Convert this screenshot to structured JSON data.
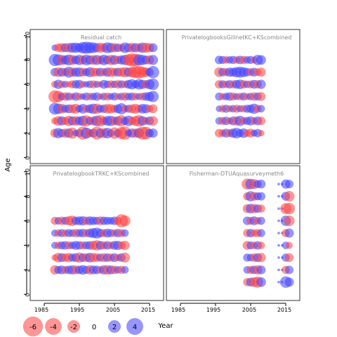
{
  "axes": {
    "ylabel": "Age",
    "xlabel": "Year",
    "y_ticks": [
      "0",
      "2",
      "4",
      "6",
      "8",
      "10"
    ],
    "x_ticks": [
      "1985",
      "1995",
      "2005",
      "2015"
    ]
  },
  "legend": {
    "labels": [
      "-6",
      "-4",
      "-2",
      "0",
      "2",
      "4"
    ]
  },
  "colors": {
    "positive": "#4040ff",
    "negative": "#ff4040",
    "frame": "#333333"
  },
  "chart_data": [
    {
      "type": "scatter",
      "title": "Residual catch",
      "xlim": [
        1981,
        2019
      ],
      "ylim": [
        -0.5,
        10.5
      ],
      "years": [
        1988,
        2016
      ],
      "ages": [
        2,
        3,
        4,
        5,
        6,
        7,
        8,
        9
      ],
      "residuals_by_age": {
        "2": [
          -0.8,
          1.2,
          0.7,
          -0.9,
          0.9,
          -1.5,
          0.3,
          0.6,
          -2.2,
          1.5,
          -0.7,
          0.8,
          -2.1,
          0.9,
          -1.1,
          1.3,
          0.5,
          -1.6,
          0.6,
          -1.8,
          -2.3,
          0.4,
          0.9,
          -0.9,
          1.1,
          -2.2,
          -2.0,
          0.7,
          0.9
        ],
        "3": [
          -0.4,
          -1.0,
          0.9,
          -0.6,
          -1.2,
          0.9,
          -1.0,
          0.8,
          1.2,
          -1.5,
          0.6,
          -0.9,
          1.3,
          -1.6,
          -0.7,
          1.1,
          1.2,
          -0.8,
          0.9,
          -1.6,
          0.6,
          1.3,
          -0.7,
          -1.1,
          -1.6,
          1.0,
          -0.5,
          0.8,
          -1.0
        ],
        "4": [
          1.7,
          1.3,
          -1.0,
          0.6,
          0.8,
          -0.8,
          -1.1,
          0.5,
          1.0,
          -0.6,
          0.8,
          1.2,
          -1.2,
          0.6,
          0.7,
          -1.0,
          -0.9,
          -0.6,
          0.8,
          1.5,
          -0.5,
          0.6,
          -0.8,
          -1.1,
          -0.6,
          1.0,
          0.9,
          -0.5,
          -0.8
        ],
        "5": [
          -2.0,
          -1.6,
          0.5,
          -0.7,
          0.6,
          -0.4,
          0.7,
          -0.5,
          0.3,
          0.6,
          -0.5,
          0.5,
          0.7,
          -0.3,
          0.5,
          -0.6,
          0.4,
          0.6,
          -0.4,
          0.5,
          -0.7,
          0.5,
          0.6,
          -0.5,
          0.4,
          -0.6,
          0.7,
          0.9,
          1.5
        ],
        "6": [
          -0.4,
          0.9,
          -0.5,
          0.4,
          -0.3,
          -0.6,
          0.7,
          0.8,
          -0.4,
          0.3,
          0.5,
          -0.6,
          0.4,
          -0.3,
          0.8,
          0.5,
          -0.6,
          0.5,
          -0.7,
          0.6,
          -0.5,
          0.8,
          1.2,
          0.6,
          1.3,
          0.9,
          -0.7,
          1.1,
          1.6
        ],
        "7": [
          0.7,
          -1.0,
          0.8,
          -0.7,
          1.4,
          -0.9,
          0.9,
          1.0,
          -0.8,
          0.6,
          1.1,
          -0.9,
          -0.7,
          0.8,
          -0.6,
          0.9,
          -1.0,
          -0.7,
          0.8,
          -0.9,
          -1.2,
          0.9,
          -1.3,
          -1.8,
          -2.1,
          -1.4,
          -1.0,
          0.7,
          1.9
        ],
        "8": [
          1.8,
          1.5,
          -1.2,
          0.9,
          1.4,
          -1.1,
          0.8,
          1.2,
          -0.9,
          1.3,
          0.9,
          -1.0,
          1.1,
          -0.8,
          1.3,
          0.8,
          -1.2,
          1.0,
          -0.7,
          0.9,
          1.2,
          -1.6,
          -2.3,
          -1.9,
          1.5,
          1.2,
          0.8,
          -0.9,
          1.1
        ],
        "9": [
          0.3,
          -0.7,
          -0.9,
          0.8,
          -1.0,
          1.1,
          1.2,
          0.9,
          1.6,
          1.8,
          1.5,
          1.3,
          0.9,
          -1.1,
          -0.8,
          1.4,
          1.0,
          -0.9,
          0.7,
          -0.6,
          1.3,
          0.8,
          -1.0,
          0.9,
          -0.8,
          1.2,
          -1.1,
          -0.9,
          0.8
        ]
      }
    },
    {
      "type": "scatter",
      "title": "PrivatelogbooksGillnetKC+KScombined",
      "xlim": [
        1981,
        2019
      ],
      "ylim": [
        -0.5,
        10.5
      ],
      "years": [
        1996,
        2008
      ],
      "ages": [
        2,
        3,
        4,
        5,
        6,
        7,
        8
      ],
      "residuals_by_age": {
        "2": [
          -0.7,
          -0.5,
          0.8,
          -0.6,
          0.9,
          1.3,
          0.6,
          1.0,
          -0.5,
          -0.8,
          0.4,
          0.7,
          -0.3
        ],
        "3": [
          0.5,
          -0.6,
          0.7,
          -0.4,
          0.8,
          -0.9,
          1.2,
          -0.5,
          0.6,
          0.9,
          -0.5,
          0.8,
          -0.7
        ],
        "4": [
          0.3,
          -0.5,
          0.6,
          -0.4,
          0.5,
          -0.6,
          0.4,
          -0.5,
          0.6,
          0.7,
          1.2,
          -0.6,
          0.5
        ],
        "5": [
          0.6,
          -0.4,
          0.5,
          0.7,
          -0.6,
          0.4,
          -0.5,
          0.6,
          -0.4,
          0.5,
          -0.7,
          0.6,
          -0.8
        ],
        "6": [
          -0.7,
          0.6,
          -0.5,
          0.7,
          -0.6,
          0.8,
          1.0,
          -0.7,
          0.5,
          -0.6,
          0.8,
          -0.7,
          0.9
        ],
        "7": [
          -1.0,
          0.7,
          -0.6,
          0.9,
          0.8,
          1.2,
          1.4,
          1.1,
          0.7,
          -0.6,
          0.8,
          -0.5,
          -0.9
        ],
        "8": [
          0.7,
          0.6,
          -0.5,
          0.5,
          0.6,
          -0.5,
          0.7,
          -0.6,
          0.5,
          0.6,
          -0.4,
          1.2,
          1.0
        ]
      }
    },
    {
      "type": "scatter",
      "title": "PrivatelogbookTRKC+KScombined",
      "xlim": [
        1981,
        2019
      ],
      "ylim": [
        -0.5,
        10.5
      ],
      "years": [
        1988,
        2008
      ],
      "ages": [
        2,
        3,
        4,
        5,
        6
      ],
      "residuals_by_age": {
        "2": [
          -0.9,
          0.6,
          0.8,
          -0.6,
          0.7,
          0.9,
          -0.8,
          0.7,
          1.0,
          0.6,
          -0.9,
          0.8,
          0.7,
          -0.5,
          0.9,
          -1.0,
          0.8,
          -0.7,
          0.5,
          -0.6,
          0.5
        ],
        "3": [
          -0.3,
          -1.0,
          0.8,
          -0.7,
          -0.9,
          0.6,
          0.8,
          -1.2,
          0.7,
          -0.8,
          1.0,
          -0.9,
          -0.7,
          0.6,
          -0.8,
          0.7,
          -0.6,
          0.8,
          -0.5,
          0.7,
          -1.1
        ],
        "4": [
          0.4,
          -0.5,
          0.6,
          0.7,
          -0.6,
          0.5,
          0.8,
          0.7,
          -0.6,
          0.6,
          0.7,
          -0.9,
          -1.2,
          0.8,
          -0.6,
          0.7,
          -0.5,
          0.8,
          0.9,
          -0.6,
          -0.9
        ],
        "5": [
          0.4,
          -0.5,
          0.6,
          -0.5,
          0.6,
          0.5,
          -0.7,
          0.6,
          0.7,
          -0.6,
          0.8,
          1.1,
          1.4,
          0.7,
          -0.6,
          0.8,
          0.6,
          -0.5,
          0.7,
          -0.6,
          0.5
        ],
        "6": [
          -0.6,
          0.5,
          -0.7,
          0.6,
          -0.9,
          -1.2,
          0.7,
          0.8,
          0.9,
          -0.7,
          0.8,
          0.7,
          0.6,
          -0.8,
          0.7,
          0.6,
          0.5,
          0.7,
          -0.6,
          -2.2,
          -1.4
        ]
      }
    },
    {
      "type": "scatter",
      "title": "Fisherman-DTUAquasurveymeth6",
      "xlim": [
        1981,
        2019
      ],
      "ylim": [
        -0.5,
        10.5
      ],
      "years": [
        2004,
        2016
      ],
      "ages": [
        1,
        2,
        3,
        4,
        5,
        6,
        7,
        8,
        9
      ],
      "missing_years": [
        2009,
        2010,
        2011,
        2012
      ],
      "residuals_by_age": {
        "1": [
          -0.6,
          0.8,
          -1.1,
          -1.4,
          1.0,
          -0.6,
          -0.5,
          0,
          0,
          0,
          0,
          1.6,
          0.9
        ],
        "2": [
          0.5,
          -0.6,
          0.7,
          -0.9,
          0.8,
          0.6,
          -0.5,
          0,
          0,
          0,
          0,
          -0.6,
          0.7
        ],
        "3": [
          0.6,
          0.5,
          -0.7,
          0.8,
          -0.9,
          -0.6,
          0.7,
          0,
          0,
          0,
          0,
          0.6,
          -0.8
        ],
        "4": [
          -0.8,
          0.6,
          -0.5,
          0.7,
          -0.5,
          -0.7,
          0.4,
          0,
          0,
          0,
          0,
          0.5,
          -0.4
        ],
        "5": [
          -0.6,
          0.7,
          -0.5,
          -0.6,
          0.6,
          0.7,
          -0.8,
          0,
          0,
          0,
          0,
          -0.6,
          0.9
        ],
        "6": [
          0.7,
          -0.6,
          0.8,
          -0.5,
          0.6,
          -0.7,
          0.9,
          0,
          0,
          0,
          0,
          1.2,
          -1.3
        ],
        "7": [
          -0.8,
          1.0,
          -0.9,
          0.7,
          -0.6,
          0.8,
          -0.7,
          0,
          0,
          0,
          0,
          -1.4,
          -1.6
        ],
        "8": [
          -0.6,
          1.2,
          -0.8,
          0.6,
          0.7,
          -0.5,
          0.4,
          0,
          0,
          0,
          0,
          0.8,
          -1.3
        ],
        "9": [
          -1.4,
          1.3,
          -1.1,
          0.6,
          0.8,
          -0.5,
          0.4,
          0,
          0,
          0,
          0,
          0.9,
          0.7
        ]
      }
    }
  ]
}
